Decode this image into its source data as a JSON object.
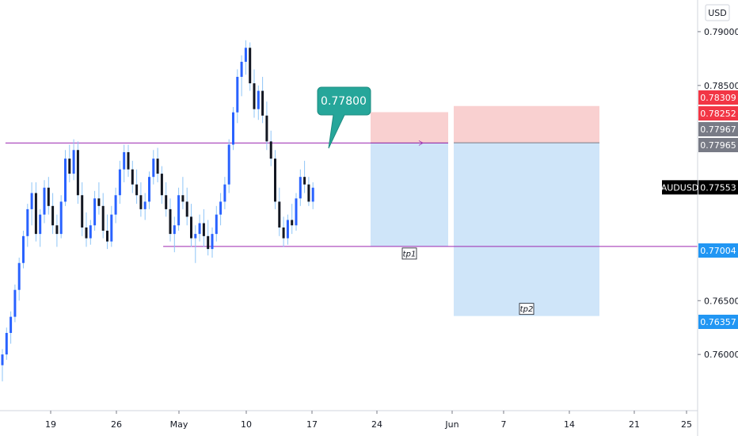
{
  "chart_data": {
    "type": "candlestick",
    "symbol": "AUDUSD",
    "currency": "USD",
    "last_price": "0.77553",
    "x_ticks": [
      "19",
      "26",
      "May",
      "10",
      "17",
      "24",
      "Jun",
      "7",
      "14",
      "21",
      "25"
    ],
    "y_ticks": [
      "0.79000",
      "0.78500",
      "0.76500",
      "0.76000"
    ],
    "ylim": [
      0.755,
      0.7925
    ],
    "candles": [
      [
        0.759,
        0.7605,
        0.7575,
        0.76
      ],
      [
        0.76,
        0.7625,
        0.7595,
        0.762
      ],
      [
        0.762,
        0.764,
        0.761,
        0.7635
      ],
      [
        0.7635,
        0.7665,
        0.763,
        0.766
      ],
      [
        0.766,
        0.769,
        0.765,
        0.7685
      ],
      [
        0.7685,
        0.7715,
        0.768,
        0.771
      ],
      [
        0.771,
        0.774,
        0.77,
        0.7735
      ],
      [
        0.7735,
        0.776,
        0.772,
        0.775
      ],
      [
        0.775,
        0.776,
        0.7705,
        0.7712
      ],
      [
        0.7712,
        0.7735,
        0.77,
        0.773
      ],
      [
        0.773,
        0.7762,
        0.7722,
        0.7755
      ],
      [
        0.7755,
        0.7765,
        0.773,
        0.7738
      ],
      [
        0.7738,
        0.775,
        0.7712,
        0.772
      ],
      [
        0.772,
        0.773,
        0.77,
        0.7712
      ],
      [
        0.7712,
        0.7748,
        0.7708,
        0.7742
      ],
      [
        0.7742,
        0.779,
        0.7738,
        0.7782
      ],
      [
        0.7782,
        0.7795,
        0.776,
        0.7768
      ],
      [
        0.7768,
        0.78,
        0.7762,
        0.779
      ],
      [
        0.779,
        0.7798,
        0.774,
        0.7748
      ],
      [
        0.7748,
        0.776,
        0.771,
        0.7718
      ],
      [
        0.7718,
        0.7732,
        0.77,
        0.7708
      ],
      [
        0.7708,
        0.7725,
        0.7702,
        0.772
      ],
      [
        0.772,
        0.7752,
        0.7715,
        0.7745
      ],
      [
        0.7745,
        0.776,
        0.773,
        0.7738
      ],
      [
        0.7738,
        0.775,
        0.7708,
        0.7715
      ],
      [
        0.7715,
        0.773,
        0.7698,
        0.7705
      ],
      [
        0.7705,
        0.7738,
        0.77,
        0.773
      ],
      [
        0.773,
        0.7755,
        0.7722,
        0.7748
      ],
      [
        0.7748,
        0.778,
        0.774,
        0.7772
      ],
      [
        0.7772,
        0.7795,
        0.776,
        0.7788
      ],
      [
        0.7788,
        0.7795,
        0.7765,
        0.7772
      ],
      [
        0.7772,
        0.778,
        0.775,
        0.7758
      ],
      [
        0.7758,
        0.7772,
        0.774,
        0.7748
      ],
      [
        0.7748,
        0.776,
        0.7728,
        0.7735
      ],
      [
        0.7735,
        0.775,
        0.7725,
        0.7742
      ],
      [
        0.7742,
        0.777,
        0.7735,
        0.7765
      ],
      [
        0.7765,
        0.779,
        0.7758,
        0.7782
      ],
      [
        0.7782,
        0.7792,
        0.776,
        0.7768
      ],
      [
        0.7768,
        0.7775,
        0.774,
        0.7748
      ],
      [
        0.7748,
        0.776,
        0.7728,
        0.7735
      ],
      [
        0.7735,
        0.7745,
        0.7705,
        0.7712
      ],
      [
        0.7712,
        0.7728,
        0.7695,
        0.772
      ],
      [
        0.772,
        0.7755,
        0.7715,
        0.7748
      ],
      [
        0.7748,
        0.7765,
        0.7735,
        0.7742
      ],
      [
        0.7742,
        0.7755,
        0.772,
        0.7728
      ],
      [
        0.7728,
        0.774,
        0.77,
        0.7708
      ],
      [
        0.7708,
        0.772,
        0.7685,
        0.7712
      ],
      [
        0.7712,
        0.773,
        0.7705,
        0.7722
      ],
      [
        0.7722,
        0.7735,
        0.77,
        0.771
      ],
      [
        0.771,
        0.7725,
        0.7692,
        0.7698
      ],
      [
        0.7698,
        0.7718,
        0.769,
        0.7712
      ],
      [
        0.7712,
        0.7738,
        0.7705,
        0.773
      ],
      [
        0.773,
        0.775,
        0.772,
        0.7742
      ],
      [
        0.7742,
        0.7765,
        0.7735,
        0.7758
      ],
      [
        0.7758,
        0.78,
        0.775,
        0.7795
      ],
      [
        0.7795,
        0.783,
        0.779,
        0.7825
      ],
      [
        0.7825,
        0.7865,
        0.7815,
        0.7858
      ],
      [
        0.7858,
        0.7878,
        0.784,
        0.7872
      ],
      [
        0.7872,
        0.7892,
        0.786,
        0.7885
      ],
      [
        0.7885,
        0.789,
        0.7845,
        0.7852
      ],
      [
        0.7852,
        0.7865,
        0.782,
        0.7828
      ],
      [
        0.7828,
        0.785,
        0.7818,
        0.7845
      ],
      [
        0.7845,
        0.7858,
        0.7815,
        0.7822
      ],
      [
        0.7822,
        0.7835,
        0.779,
        0.7798
      ],
      [
        0.7798,
        0.7808,
        0.7775,
        0.7782
      ],
      [
        0.7782,
        0.779,
        0.7735,
        0.7742
      ],
      [
        0.7742,
        0.7755,
        0.771,
        0.7718
      ],
      [
        0.7718,
        0.7728,
        0.77,
        0.7708
      ],
      [
        0.7708,
        0.773,
        0.7702,
        0.7725
      ],
      [
        0.7725,
        0.774,
        0.7712,
        0.772
      ],
      [
        0.772,
        0.775,
        0.7715,
        0.7745
      ],
      [
        0.7745,
        0.7772,
        0.7738,
        0.7765
      ],
      [
        0.7765,
        0.778,
        0.775,
        0.7758
      ],
      [
        0.7758,
        0.7765,
        0.7738,
        0.7742
      ],
      [
        0.7742,
        0.776,
        0.7735,
        0.7755
      ]
    ],
    "horizontal_lines": [
      {
        "value": 0.77965,
        "start_index": 3,
        "end_label": "0.77965"
      },
      {
        "value": 0.77004,
        "start_index": 27,
        "end_label": "0.77004"
      }
    ],
    "callout": {
      "text": "0.77800",
      "value": 0.778
    },
    "positions": [
      {
        "label": "tp1",
        "entry": 0.77965,
        "stop": 0.78252,
        "target": 0.77004
      },
      {
        "label": "tp2",
        "entry": 0.77967,
        "stop": 0.78309,
        "target": 0.76357
      }
    ],
    "price_scale_labels": [
      {
        "text": "0.78309",
        "value": 0.78309,
        "color": "#f23645"
      },
      {
        "text": "0.78252",
        "value": 0.78252,
        "color": "#f23645"
      },
      {
        "text": "0.77967",
        "value": 0.77967,
        "color": "#787b86"
      },
      {
        "text": "0.77965",
        "value": 0.77965,
        "color": "#787b86"
      },
      {
        "text": "0.77553",
        "value": 0.77553,
        "color": "#000000"
      },
      {
        "text": "0.77004",
        "value": 0.77004,
        "color": "#2196f3"
      },
      {
        "text": "0.76357",
        "value": 0.76357,
        "color": "#2196f3"
      }
    ],
    "colors": {
      "up": "#2962ff",
      "down": "#131722",
      "level_line": "#9c27b0",
      "stop_zone": "#f9d0d0",
      "target_zone": "#cfe5f9",
      "callout": "#26a69a"
    }
  }
}
